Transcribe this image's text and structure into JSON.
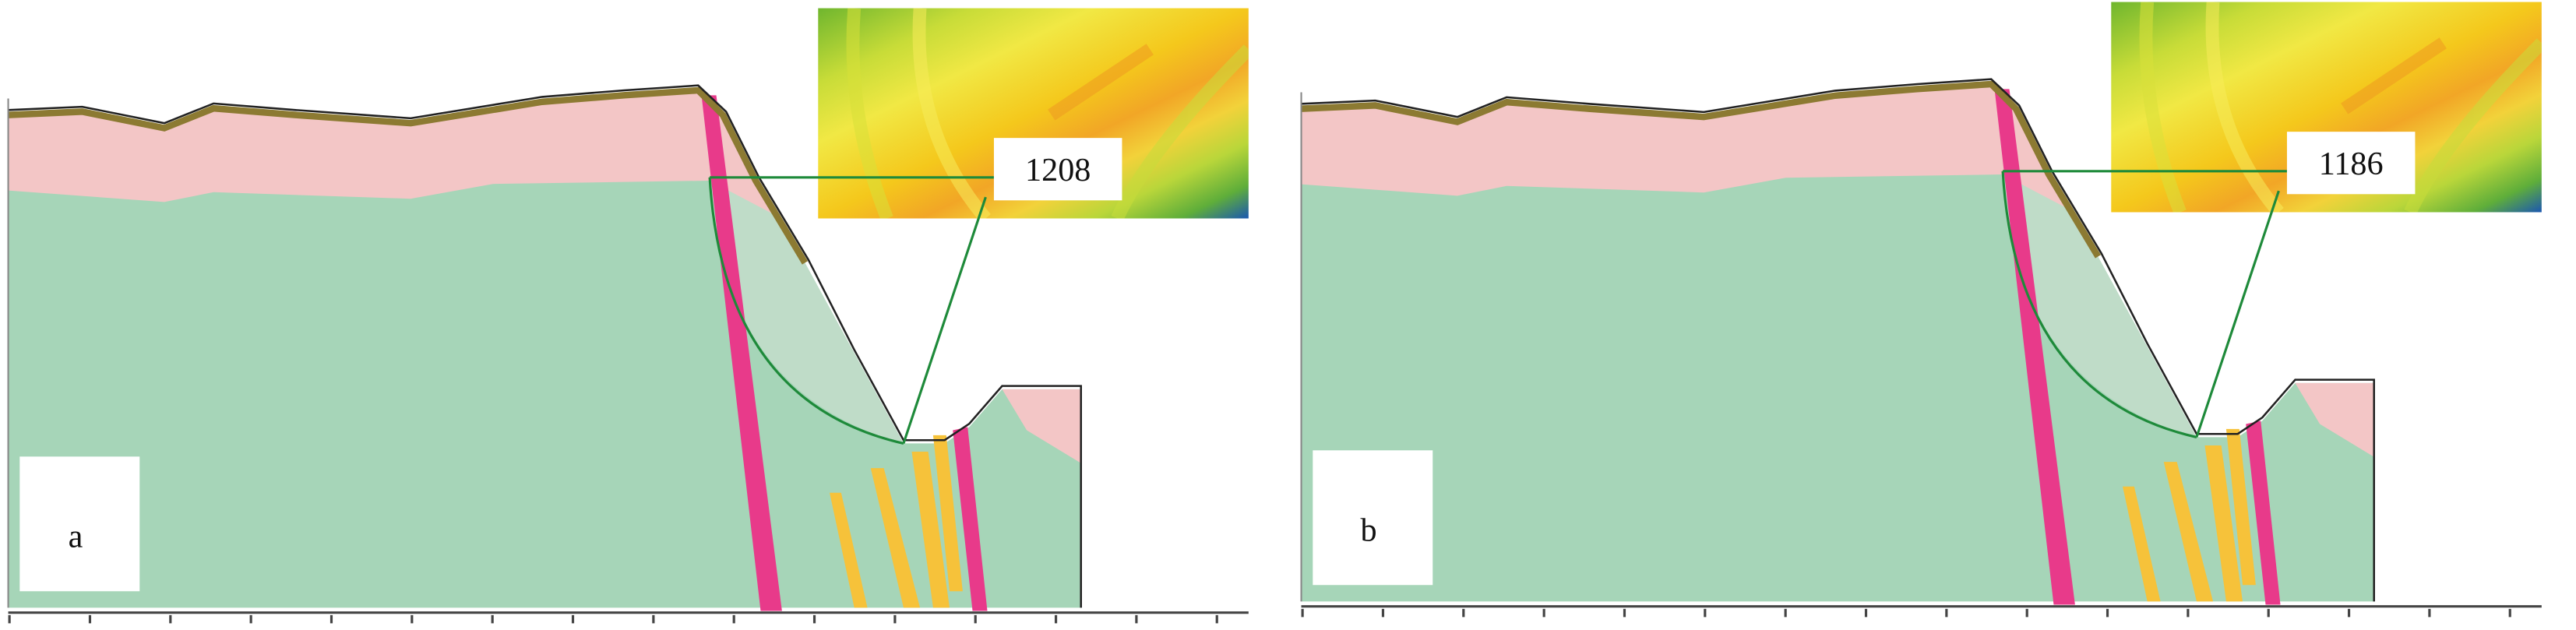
{
  "panels": [
    {
      "label": "a",
      "value": "1208"
    },
    {
      "label": "b",
      "value": "1186"
    }
  ]
}
